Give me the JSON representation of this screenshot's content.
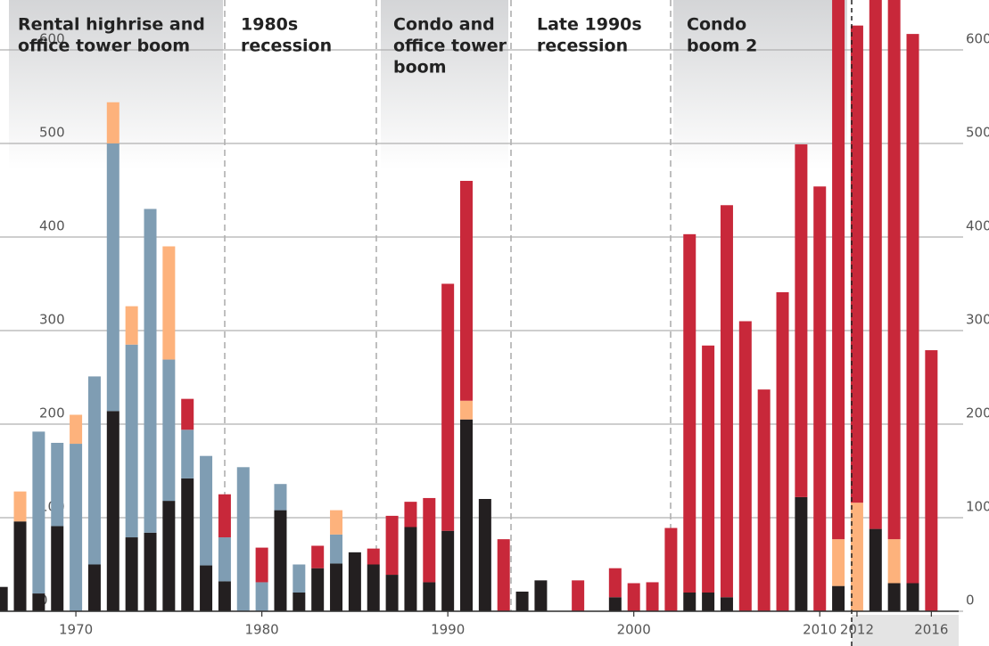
{
  "chart_data": {
    "type": "bar",
    "x": [
      1966,
      1967,
      1968,
      1969,
      1970,
      1971,
      1972,
      1973,
      1974,
      1975,
      1976,
      1977,
      1978,
      1979,
      1980,
      1981,
      1982,
      1983,
      1984,
      1985,
      1986,
      1987,
      1988,
      1989,
      1990,
      1991,
      1992,
      1993,
      1994,
      1995,
      1996,
      1997,
      1998,
      1999,
      2000,
      2001,
      2002,
      2003,
      2004,
      2005,
      2006,
      2007,
      2008,
      2009,
      2010,
      2011,
      2012,
      2013,
      2014,
      2015,
      2016
    ],
    "series": [
      {
        "color": "#231f20",
        "values": [
          26,
          96,
          19,
          91,
          0,
          50,
          214,
          79,
          84,
          118,
          142,
          49,
          32,
          0,
          0,
          108,
          20,
          46,
          51,
          63,
          50,
          39,
          90,
          31,
          86,
          205,
          120,
          0,
          21,
          33,
          0,
          0,
          0,
          15,
          0,
          0,
          0,
          20,
          20,
          15,
          0,
          0,
          0,
          122,
          0,
          27,
          0,
          88,
          30,
          30,
          0
        ]
      },
      {
        "color": "#7f9db3",
        "values": [
          0,
          0,
          173,
          89,
          179,
          201,
          286,
          206,
          346,
          151,
          52,
          117,
          47,
          154,
          31,
          28,
          30,
          0,
          31,
          0,
          0,
          0,
          0,
          0,
          0,
          0,
          0,
          0,
          0,
          0,
          0,
          0,
          0,
          0,
          0,
          0,
          0,
          0,
          0,
          0,
          0,
          0,
          0,
          0,
          0,
          0,
          0,
          0,
          0,
          0,
          0
        ]
      },
      {
        "color": "#fdb27c",
        "values": [
          0,
          32,
          0,
          0,
          31,
          0,
          44,
          41,
          0,
          121,
          0,
          0,
          0,
          0,
          0,
          0,
          0,
          0,
          26,
          0,
          0,
          0,
          0,
          0,
          0,
          20,
          0,
          0,
          0,
          0,
          0,
          0,
          0,
          0,
          0,
          0,
          0,
          0,
          0,
          0,
          0,
          0,
          0,
          0,
          0,
          50,
          116,
          0,
          47,
          0,
          0
        ]
      },
      {
        "color": "#c8283a",
        "values": [
          0,
          0,
          0,
          0,
          0,
          0,
          0,
          0,
          0,
          0,
          33,
          0,
          46,
          0,
          37,
          0,
          0,
          24,
          0,
          0,
          17,
          63,
          27,
          90,
          264,
          235,
          0,
          77,
          0,
          0,
          0,
          33,
          0,
          31,
          30,
          31,
          89,
          383,
          264,
          419,
          310,
          237,
          341,
          377,
          454,
          623,
          510,
          632,
          613,
          587,
          279
        ]
      }
    ],
    "xlim": [
      1965.92,
      2019.1
    ],
    "xticks": [
      1970,
      1980,
      1990,
      2000,
      2010,
      2012,
      2016
    ],
    "ylim": [
      0,
      653.3
    ],
    "yticks": [
      0,
      100,
      200,
      300,
      400,
      500,
      600
    ],
    "grid": true,
    "periods": [
      [
        "Rental highrise and",
        "office tower boom"
      ],
      [
        "1980s",
        "recession"
      ],
      [
        "Condo and",
        "office tower",
        "boom"
      ],
      [
        "Late 1990s",
        "recession"
      ],
      [
        "Condo",
        "boom 2"
      ]
    ]
  }
}
